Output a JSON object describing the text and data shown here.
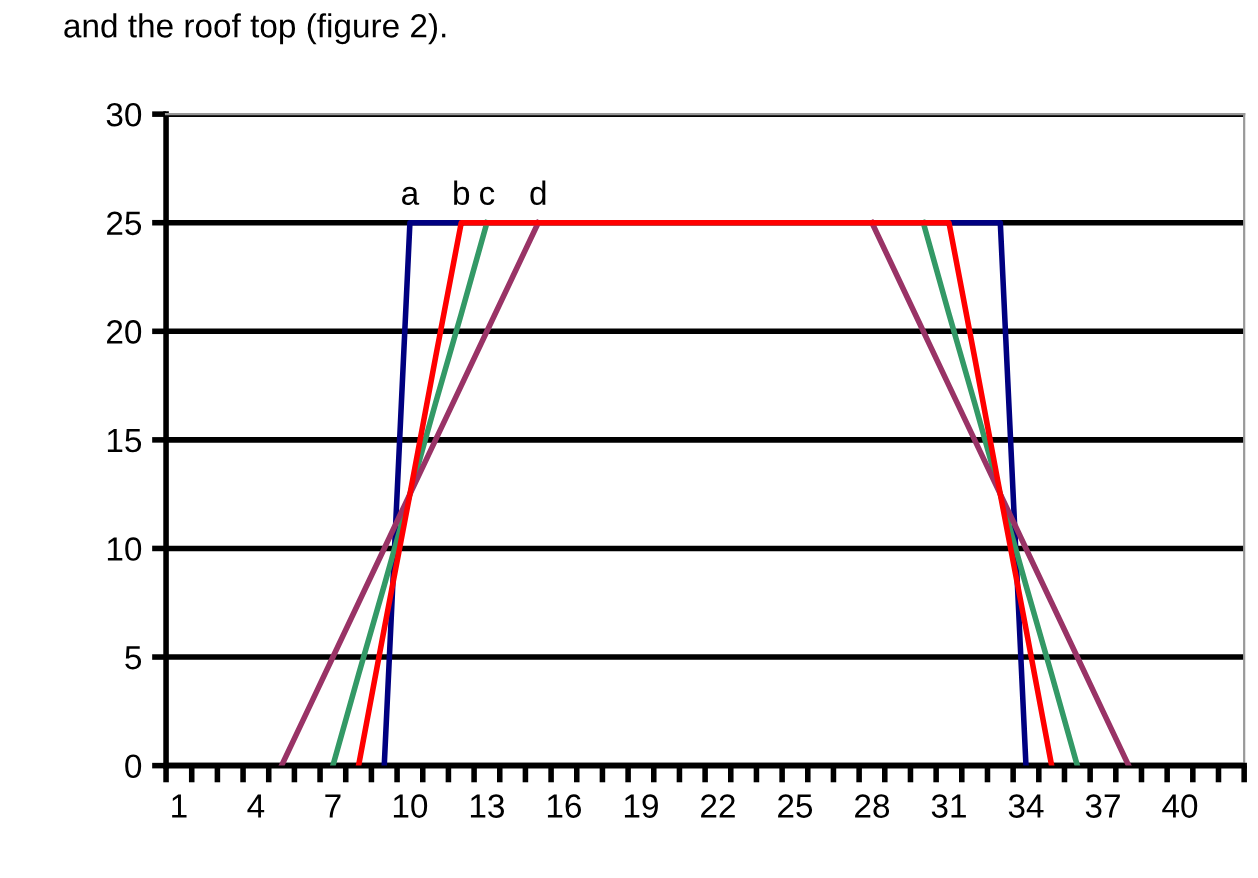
{
  "chart_data": {
    "type": "line",
    "categories": [
      "1",
      null,
      null,
      "4",
      null,
      null,
      "7",
      null,
      null,
      "10",
      null,
      null,
      "13",
      null,
      null,
      "16",
      null,
      null,
      "19",
      null,
      null,
      "22",
      null,
      null,
      "25",
      null,
      null,
      "28",
      null,
      null,
      "31",
      null,
      null,
      "34",
      null,
      null,
      "37",
      null,
      null,
      "40",
      null,
      null
    ],
    "series": [
      {
        "name": "a",
        "color": "#000080",
        "values": [
          null,
          null,
          null,
          null,
          null,
          null,
          null,
          null,
          0,
          25,
          25,
          25,
          null,
          null,
          null,
          null,
          null,
          null,
          null,
          null,
          null,
          null,
          null,
          null,
          null,
          null,
          null,
          null,
          null,
          null,
          25,
          25,
          25,
          0,
          null,
          null,
          null,
          null,
          null,
          null,
          null,
          null
        ]
      },
      {
        "name": "c",
        "color": "#339966",
        "values": [
          null,
          null,
          null,
          null,
          null,
          null,
          0,
          4.2,
          8.3,
          12.5,
          16.7,
          20.8,
          25,
          null,
          null,
          null,
          null,
          null,
          null,
          null,
          null,
          null,
          null,
          null,
          null,
          null,
          null,
          null,
          null,
          25,
          20.8,
          16.7,
          12.5,
          8.3,
          4.2,
          0,
          null,
          null,
          null,
          null,
          null,
          null
        ]
      },
      {
        "name": "d",
        "color": "#993366",
        "values": [
          null,
          null,
          null,
          null,
          0,
          2.5,
          5,
          7.5,
          10,
          12.5,
          15,
          17.5,
          20,
          22.5,
          25,
          null,
          null,
          null,
          null,
          null,
          null,
          null,
          null,
          null,
          null,
          null,
          null,
          25,
          22.5,
          20,
          17.5,
          15,
          12.5,
          10,
          7.5,
          5,
          2.5,
          0,
          null,
          null,
          null,
          null
        ]
      },
      {
        "name": "b",
        "color": "#ff0000",
        "values": [
          null,
          null,
          null,
          null,
          null,
          null,
          null,
          0,
          6.3,
          12.5,
          18.8,
          25,
          25,
          25,
          25,
          25,
          25,
          25,
          25,
          25,
          25,
          25,
          25,
          25,
          25,
          25,
          25,
          25,
          25,
          25,
          25,
          18.8,
          12.5,
          6.3,
          0,
          null,
          null,
          null,
          null,
          null,
          null,
          null
        ]
      }
    ],
    "ylim": [
      0,
      30
    ],
    "yticks": [
      0,
      5,
      10,
      15,
      20,
      25,
      30
    ],
    "grid": "y",
    "legend": false,
    "marker": "none",
    "line_style": "solid",
    "annotations": [
      "and the roof top (figure 2)."
    ]
  }
}
